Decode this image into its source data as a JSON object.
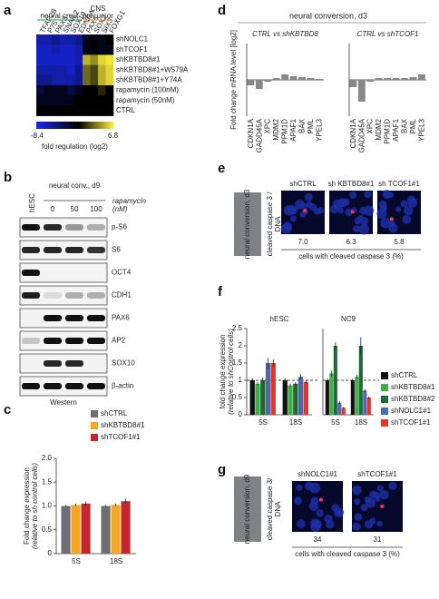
{
  "panel_labels": [
    "a",
    "b",
    "c",
    "d",
    "e",
    "f",
    "g"
  ],
  "chart_data": [
    {
      "type": "heatmap",
      "column_groups": [
        {
          "label": [
            "neural crest"
          ],
          "color": "#239a45",
          "columns": [
            "TFAP2B",
            "P75",
            "PAX3",
            "SNAIL2",
            "SOX10",
            "EDNRA"
          ]
        },
        {
          "label": [
            "CNS",
            "precursor"
          ],
          "color": "#e8902a",
          "columns": [
            "PAX6",
            "SOX2",
            "SIX3",
            "FOXG1"
          ]
        }
      ],
      "rows": [
        "shNOLC1",
        "shTCOF1",
        "shKBTBD8#1",
        "shKBTBD8#1+W579A",
        "shKBTBD8#1+Y74A",
        "rapamycin (100nM)",
        "rapamycin (50nM)",
        "CTRL"
      ],
      "values": [
        [
          -6,
          -6,
          -5,
          -6,
          -6,
          -5,
          -1,
          0,
          -1,
          0
        ],
        [
          -7,
          -7,
          -6,
          -7,
          -7,
          -6,
          -1,
          0,
          -1,
          -1
        ],
        [
          -7,
          -7,
          -7,
          -7,
          -7,
          -6,
          5,
          4,
          6,
          6.5
        ],
        [
          -6,
          -6,
          -6,
          -6,
          -7,
          -5,
          3,
          2,
          5,
          6
        ],
        [
          -5,
          -5,
          -6,
          -6,
          -6,
          -5,
          3,
          2,
          5,
          6
        ],
        [
          -2,
          -1,
          -1,
          -1,
          -2,
          -1,
          0,
          0,
          1,
          0
        ],
        [
          -1,
          -1,
          -1,
          -1,
          -1,
          0,
          0,
          0,
          0,
          0
        ],
        [
          0,
          0,
          0,
          0,
          0,
          0,
          0,
          0,
          0,
          0
        ]
      ],
      "zlim": [
        -8.4,
        6.8
      ],
      "colorbar_label": "fold regulation (log2)"
    },
    {
      "type": "bar",
      "categories": [
        "5S",
        "18S"
      ],
      "series": [
        {
          "name": "shCTRL",
          "color": "#6d6e71",
          "values": [
            1.0,
            1.0
          ],
          "errors": [
            0.02,
            0.02
          ]
        },
        {
          "name": "shKBTBD8#1",
          "color": "#f5a623",
          "values": [
            1.02,
            1.02
          ],
          "errors": [
            0.03,
            0.03
          ]
        },
        {
          "name": "shTCOF1#1",
          "color": "#c1272d",
          "values": [
            1.05,
            1.1
          ],
          "errors": [
            0.04,
            0.05
          ]
        }
      ],
      "ylim": [
        0,
        2.0
      ],
      "yticks": [
        0,
        0.5,
        {
          "value": 1.0,
          "label": "1.0"
        },
        1.5,
        {
          "value": 2.0,
          "label": "2.0"
        }
      ],
      "ylabel": "Fold change expression",
      "ylabel_note": "(relative to sh control cells)"
    },
    {
      "type": "bar",
      "title": "CTRL vs shKBTBD8",
      "categories": [
        "CDKN1A",
        "GADD45A",
        "XPC",
        "MDM2",
        "PPM1D",
        "APAF1",
        "BAX",
        "PML",
        "YPEL3"
      ],
      "series": [
        {
          "color": "#888888",
          "values": [
            -0.3,
            -0.5,
            -0.1,
            0.1,
            0.3,
            0.2,
            0.15,
            0.1,
            0.05
          ]
        }
      ],
      "ylim": [
        -2,
        2
      ],
      "ylabel": "Fold change mRNA level [log2]"
    },
    {
      "type": "bar",
      "title": "CTRL vs shTCOF1",
      "categories": [
        "CDKN1A",
        "GADD45A",
        "XPC",
        "MDM2",
        "PPM1D",
        "APAF1",
        "BAX",
        "PML",
        "YPEL3"
      ],
      "series": [
        {
          "color": "#888888",
          "values": [
            -0.4,
            -1.2,
            -0.1,
            0.1,
            0.1,
            0.1,
            0.1,
            0.15,
            0.3
          ]
        }
      ],
      "ylim": [
        -2,
        2
      ]
    },
    {
      "type": "bar",
      "title": "hESC",
      "categories": [
        "5S",
        "18S"
      ],
      "series": [
        {
          "name": "shCTRL",
          "color": "#111111",
          "values": [
            1.0,
            1.0
          ],
          "errors": [
            0.05,
            0.05
          ]
        },
        {
          "name": "shKBTBD8#1",
          "color": "#3fae49",
          "values": [
            0.9,
            0.85
          ],
          "errors": [
            0.05,
            0.05
          ]
        },
        {
          "name": "shKBTBD8#2",
          "color": "#1d6b32",
          "values": [
            1.0,
            0.9
          ],
          "errors": [
            0.08,
            0.05
          ]
        },
        {
          "name": "shNOLC1#1",
          "color": "#4a69b1",
          "values": [
            1.5,
            1.1
          ],
          "errors": [
            0.15,
            0.08
          ]
        },
        {
          "name": "shTCOF1#1",
          "color": "#e8332a",
          "values": [
            1.5,
            0.95
          ],
          "errors": [
            0.1,
            0.05
          ]
        }
      ],
      "ylim": [
        0,
        2.5
      ],
      "yticks": [
        0,
        0.5,
        1,
        1.5,
        2,
        2.5
      ],
      "hline": 1,
      "ylabel": "fold change expression",
      "ylabel_note": "(relative to shControl cells)"
    },
    {
      "type": "bar",
      "title": "NC9",
      "categories": [
        "5S",
        "18S"
      ],
      "series": [
        {
          "color": "#111111",
          "values": [
            1.0,
            1.0
          ],
          "errors": [
            0.05,
            0.05
          ]
        },
        {
          "color": "#3fae49",
          "values": [
            1.2,
            1.1
          ],
          "errors": [
            0.08,
            0.06
          ]
        },
        {
          "color": "#1d6b32",
          "values": [
            2.0,
            2.0
          ],
          "errors": [
            0.1,
            0.25
          ]
        },
        {
          "color": "#4a69b1",
          "values": [
            0.35,
            0.7
          ],
          "errors": [
            0.05,
            0.05
          ]
        },
        {
          "color": "#e8332a",
          "values": [
            0.2,
            0.5
          ],
          "errors": [
            0.03,
            0.04
          ]
        }
      ],
      "ylim": [
        0,
        2.5
      ],
      "hline": 1
    }
  ],
  "panel_b": {
    "lanes": [
      "hESC",
      "0",
      "50",
      "100"
    ],
    "header": "neural conv., d9",
    "treatment": "rapamycin",
    "unit": "(nM)",
    "rows": [
      "p-S6",
      "S6",
      "OCT4",
      "CDH1",
      "PAX6",
      "AP2",
      "SOX10",
      "β-actin"
    ],
    "footer": "Western"
  },
  "panel_d": {
    "title": "neural conversion, d3"
  },
  "panel_e": {
    "side": "neural conversion, d3",
    "stain_red": "cleaved caspase 3 /",
    "stain_blue": "DNA",
    "samples": [
      {
        "label": "shCTRL",
        "value": "7.0"
      },
      {
        "label": "sh KBTBD8#1",
        "value": "6.3"
      },
      {
        "label": "sh TCOF1#1",
        "value": "5.8"
      }
    ],
    "caption": "cells with cleaved caspase 3 (%)"
  },
  "panel_g": {
    "side": "neural conversion, d9",
    "stain_red": "cleaved caspase 3/",
    "stain_blue": "DNA",
    "samples": [
      {
        "label": "shNOLC1#1",
        "value": "34"
      },
      {
        "label": "shTCOF1#1",
        "value": "31"
      }
    ],
    "caption": "cells with cleaved caspase 3 (%)"
  }
}
